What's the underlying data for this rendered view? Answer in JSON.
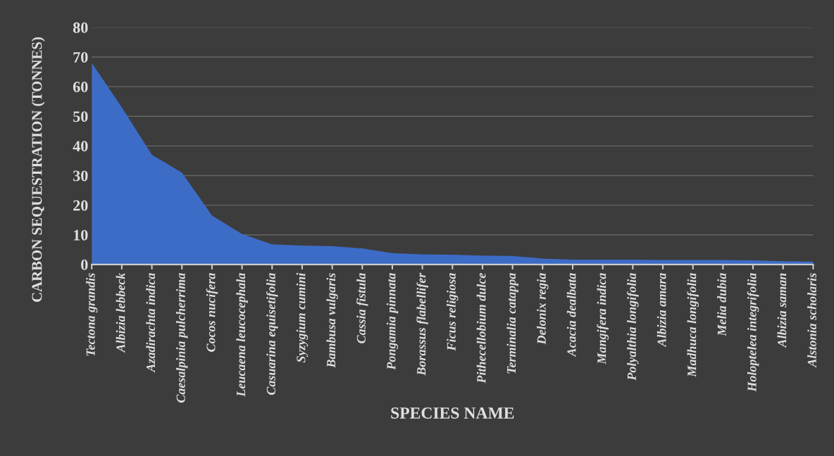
{
  "chart_data": {
    "type": "area",
    "xlabel": "SPECIES NAME",
    "ylabel": "CARBON SEQUESTRATION (TONNES)",
    "categories": [
      "Tectona grandis",
      "Albizia lebbeck",
      "Azadirachta indica",
      "Caesalpinia pulcherrima",
      "Cocos nucifera",
      "Leucaena leucocephala",
      "Casuarina equisetifolia",
      "Syzygium cumini",
      "Bambusa vulgaris",
      "Cassia fistula",
      "Pongamia pinnata",
      "Borassus flabellifer",
      "Ficus religiosa",
      "Pithecellobium dulce",
      "Terminalia catappa",
      "Delonix regia",
      "Acacia dealbata",
      "Mangifera indica",
      "Polyalthia longifolia",
      "Albizia amara",
      "Madhuca longifolia",
      "Melia dubia",
      "Holoptelea integrifolia",
      "Albizia saman",
      "Alstonia scholaris"
    ],
    "values": [
      68,
      53,
      37,
      31,
      16.5,
      10.3,
      6.8,
      6.4,
      6.2,
      5.4,
      3.8,
      3.4,
      3.3,
      3.0,
      2.9,
      2.0,
      1.6,
      1.6,
      1.6,
      1.5,
      1.5,
      1.5,
      1.4,
      1.1,
      1.0
    ],
    "color": "#3d6cc7",
    "ylim": [
      0,
      80
    ],
    "yticks": [
      0,
      10,
      20,
      30,
      40,
      50,
      60,
      70,
      80
    ],
    "grid": "y",
    "legend": false
  }
}
